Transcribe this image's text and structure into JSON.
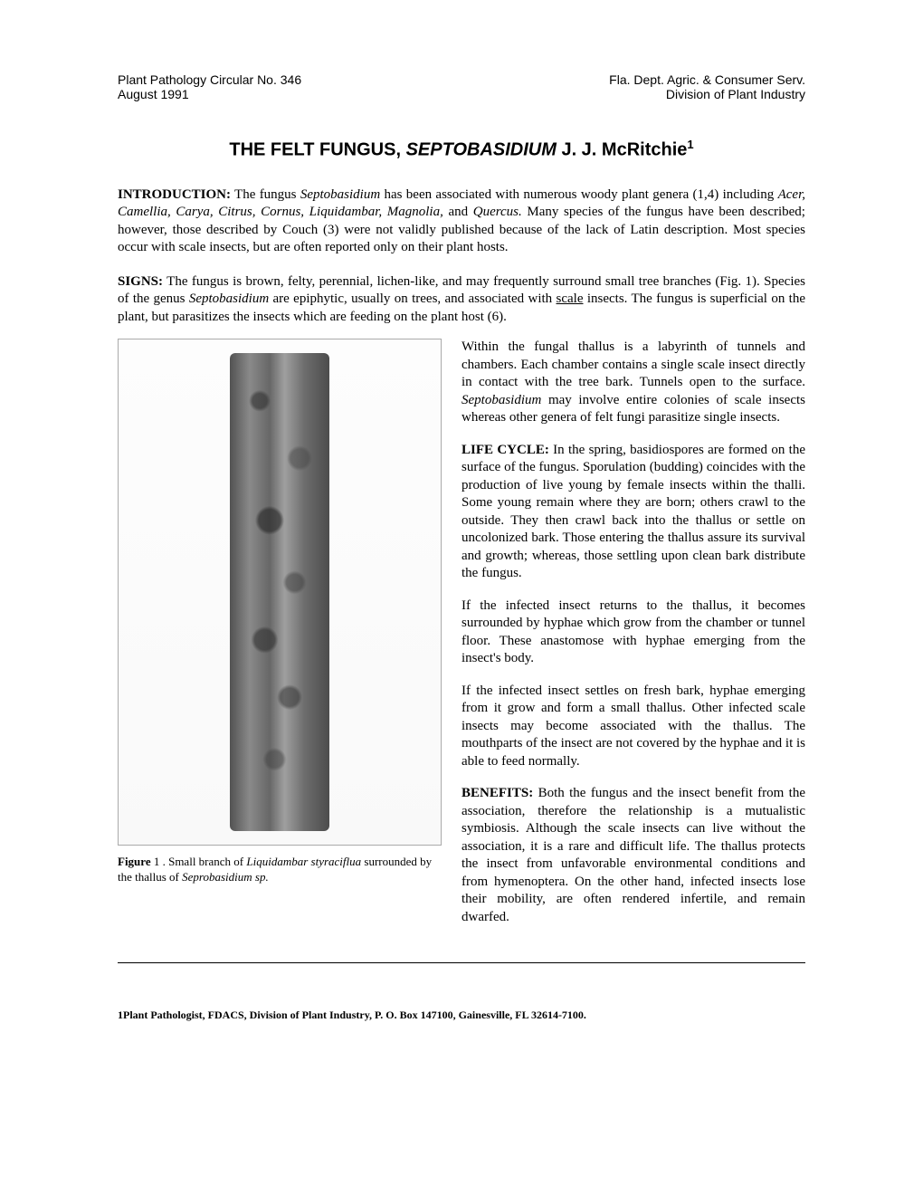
{
  "header": {
    "left_line1": "Plant Pathology Circular No. 346",
    "left_line2": "August 1991",
    "right_line1": "Fla. Dept. Agric. & Consumer Serv.",
    "right_line2": "Division of Plant Industry"
  },
  "title": {
    "prefix": "THE FELT FUNGUS, ",
    "italic": "SEPTOBASIDIUM",
    "suffix": " J. J. McRitchie",
    "superscript": "1"
  },
  "introduction": {
    "heading": "INTRODUCTION:",
    "text_pre": " The fungus ",
    "italic1": "Septobasidium",
    "text_mid1": " has been associated with numerous woody plant genera (1,4) including ",
    "italic2": "Acer, Camellia, Carya, Citrus, Cornus, Liquidambar, Magnolia,",
    "text_mid2": " and ",
    "italic3": "Quercus.",
    "text_post": " Many species of the fungus have been described; however, those described by Couch (3) were not validly published because of the lack of Latin description. Most species occur with scale insects, but are often reported only on their plant hosts."
  },
  "signs": {
    "heading": "SIGNS:",
    "text_pre": " The fungus is brown, felty, perennial, lichen-like, and may frequently surround small tree branches (Fig. 1). Species of the genus ",
    "italic1": "Septobasidium",
    "text_mid1": " are epiphytic, usually on trees, and associated with ",
    "underline": "scale",
    "text_post": " insects. The fungus is superficial on the plant, but parasitizes the insects which are feeding on the plant host (6)."
  },
  "figure": {
    "label": "Figure",
    "number": " 1 . ",
    "caption_pre": "Small branch of ",
    "caption_italic1": "Liquidambar styraciflua",
    "caption_mid": " surrounded by the thallus of ",
    "caption_italic2": "Seprobasidium sp."
  },
  "para1": {
    "text_pre": "Within the fungal thallus is a labyrinth of tunnels and chambers. Each chamber contains a single scale insect directly in contact with the tree bark. Tunnels open to the surface. ",
    "italic": "Septobasidium",
    "text_post": " may involve entire colonies of scale insects whereas other genera of felt fungi parasitize single insects."
  },
  "lifecycle": {
    "heading": "LIFE CYCLE:",
    "text": " In the spring, basidiospores are formed on the surface of the fungus. Sporulation (budding) coincides with the production of live young by female insects within the thalli. Some young remain where they are born; others crawl to the outside. They then crawl back into the thallus or settle on uncolonized bark. Those entering the thallus assure its survival and growth; whereas, those settling upon clean bark distribute the fungus."
  },
  "para3": "If the infected insect returns to the thallus, it becomes surrounded by hyphae which grow from the chamber or tunnel floor. These anastomose with hyphae emerging from the insect's body.",
  "para4": "If the infected insect settles on fresh bark, hyphae emerging from it grow and form a small thallus. Other infected scale insects may become associated with the thallus. The mouthparts of the insect are not covered by the hyphae and it is able to feed normally.",
  "benefits": {
    "heading": "BENEFITS:",
    "text": " Both the fungus and the insect benefit from the association, therefore the relationship is a mutualistic symbiosis. Although the scale insects can live without the association, it is a rare and difficult life. The thallus protects the insect from unfavorable environmental conditions and from hymenoptera. On the other hand, infected insects lose their mobility, are often rendered infertile, and remain dwarfed."
  },
  "footnote": "1Plant Pathologist, FDACS, Division of Plant Industry, P. O. Box 147100, Gainesville, FL 32614-7100."
}
